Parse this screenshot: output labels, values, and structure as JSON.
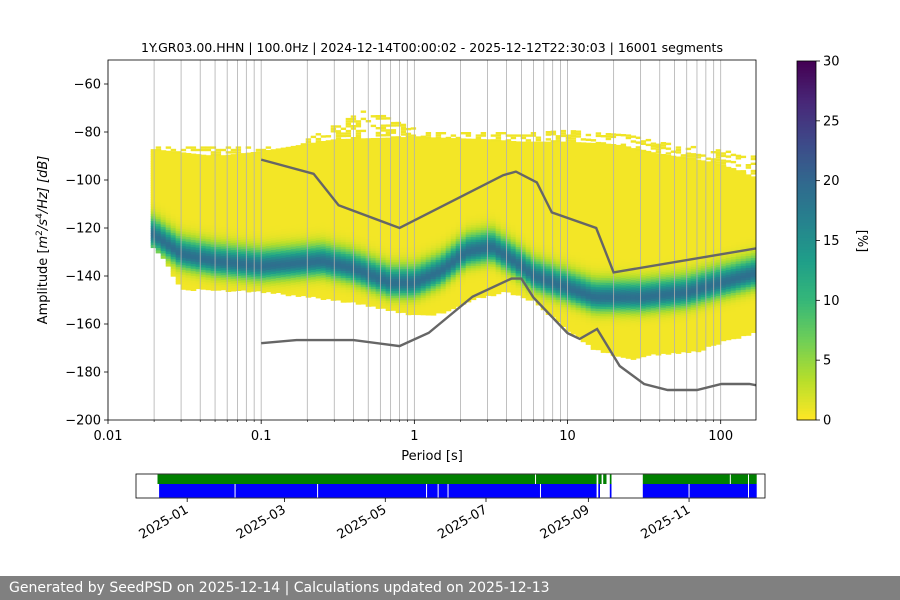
{
  "footer": {
    "text": "Generated by SeedPSD on 2025-12-14 | Calculations updated on 2025-12-13"
  },
  "chart_data": [
    {
      "type": "heatmap",
      "title": "1Y.GR03.00.HHN | 100.0Hz | 2024-12-14T00:00:02 - 2025-12-12T22:30:03 | 16001 segments",
      "xlabel": "Period [s]",
      "ylabel_parts": {
        "prefix": "Amplitude [",
        "m": "m",
        "exp2": "2",
        "s": "/s",
        "exp4": "4",
        "suffix": "/Hz] [dB]"
      },
      "x_scale": "log",
      "xlim": [
        0.01,
        170
      ],
      "ylim": [
        -200,
        -50
      ],
      "grid": true,
      "x_ticks": [
        {
          "value": 0.01,
          "label": "0.01"
        },
        {
          "value": 0.1,
          "label": "0.1"
        },
        {
          "value": 1,
          "label": "1"
        },
        {
          "value": 10,
          "label": "10"
        },
        {
          "value": 100,
          "label": "100"
        }
      ],
      "y_ticks": [
        {
          "value": -60,
          "label": "−60"
        },
        {
          "value": -80,
          "label": "−80"
        },
        {
          "value": -100,
          "label": "−100"
        },
        {
          "value": -120,
          "label": "−120"
        },
        {
          "value": -140,
          "label": "−140"
        },
        {
          "value": -160,
          "label": "−160"
        },
        {
          "value": -180,
          "label": "−180"
        },
        {
          "value": -200,
          "label": "−200"
        }
      ],
      "psd_density": {
        "x_start": 0.019,
        "mode": [
          [
            0.019,
            -122
          ],
          [
            0.03,
            -131
          ],
          [
            0.05,
            -134
          ],
          [
            0.1,
            -136
          ],
          [
            0.16,
            -135
          ],
          [
            0.25,
            -134
          ],
          [
            0.4,
            -137
          ],
          [
            0.7,
            -143
          ],
          [
            1.0,
            -143
          ],
          [
            1.5,
            -138
          ],
          [
            2.2,
            -130
          ],
          [
            3.2,
            -128
          ],
          [
            4.5,
            -134
          ],
          [
            6,
            -140
          ],
          [
            9,
            -144
          ],
          [
            15,
            -149
          ],
          [
            30,
            -149
          ],
          [
            60,
            -147
          ],
          [
            100,
            -143
          ],
          [
            170,
            -139
          ]
        ],
        "lower": [
          [
            0.019,
            -127
          ],
          [
            0.023,
            -132
          ],
          [
            0.03,
            -145
          ],
          [
            0.1,
            -146
          ],
          [
            0.2,
            -148
          ],
          [
            0.35,
            -150
          ],
          [
            0.7,
            -154
          ],
          [
            1.0,
            -156
          ],
          [
            1.5,
            -155
          ],
          [
            2.5,
            -149
          ],
          [
            4,
            -146
          ],
          [
            6,
            -150
          ],
          [
            10,
            -162
          ],
          [
            15,
            -170
          ],
          [
            25,
            -174
          ],
          [
            40,
            -172
          ],
          [
            70,
            -171
          ],
          [
            100,
            -167
          ],
          [
            170,
            -163
          ]
        ],
        "upper": [
          [
            0.019,
            -87
          ],
          [
            0.05,
            -90
          ],
          [
            0.1,
            -88
          ],
          [
            0.3,
            -83
          ],
          [
            1.0,
            -82
          ],
          [
            3,
            -83
          ],
          [
            5,
            -84
          ],
          [
            10,
            -84
          ],
          [
            20,
            -85
          ],
          [
            40,
            -89
          ],
          [
            80,
            -92
          ],
          [
            120,
            -95
          ],
          [
            170,
            -99
          ]
        ],
        "sparse_upper": [
          [
            0.16,
            -86
          ],
          [
            0.3,
            -77
          ],
          [
            0.5,
            -70
          ],
          [
            0.8,
            -76
          ],
          [
            1.2,
            -80
          ],
          [
            3,
            -80
          ],
          [
            6,
            -80
          ],
          [
            10,
            -79
          ],
          [
            15,
            -80
          ],
          [
            25,
            -81
          ],
          [
            40,
            -84
          ],
          [
            70,
            -86
          ],
          [
            120,
            -88
          ],
          [
            170,
            -90
          ]
        ]
      },
      "nhnm": {
        "x": [
          0.1,
          0.22,
          0.32,
          0.8,
          3.8,
          4.6,
          6.3,
          7.9,
          15.4,
          20,
          170
        ],
        "y": [
          -91.5,
          -97.4,
          -110.5,
          -120,
          -98,
          -96.5,
          -101,
          -113.5,
          -120,
          -138.5,
          -128.5
        ]
      },
      "nlnm": {
        "x": [
          0.1,
          0.17,
          0.4,
          0.8,
          1.24,
          2.4,
          4.3,
          5.0,
          6.0,
          10,
          12,
          15.6,
          21.9,
          31.6,
          45,
          70,
          101,
          154,
          170
        ],
        "y": [
          -168,
          -166.7,
          -166.7,
          -169.2,
          -163.7,
          -148.6,
          -141.1,
          -141.1,
          -149,
          -163.8,
          -166.2,
          -162.1,
          -177.5,
          -185,
          -187.5,
          -187.5,
          -185,
          -185,
          -185.5
        ]
      },
      "colorbar": {
        "label": "[%]",
        "range": [
          0,
          30
        ],
        "ticks": [
          {
            "value": 0,
            "label": "0"
          },
          {
            "value": 5,
            "label": "5"
          },
          {
            "value": 10,
            "label": "10"
          },
          {
            "value": 15,
            "label": "15"
          },
          {
            "value": 20,
            "label": "20"
          },
          {
            "value": 25,
            "label": "25"
          },
          {
            "value": 30,
            "label": "30"
          }
        ],
        "colors": [
          "#fde725",
          "#b5de2b",
          "#6ece58",
          "#35b779",
          "#1f9e89",
          "#26828e",
          "#31688e",
          "#3e4989",
          "#482878",
          "#440154"
        ]
      }
    },
    {
      "type": "timeline",
      "colors": {
        "top": "#008000",
        "bottom": "#0000ff"
      },
      "xlim": [
        "2024-12-01",
        "2025-12-17"
      ],
      "top_segments": [
        [
          "2024-12-14",
          "2025-09-06"
        ],
        [
          "2025-09-07",
          "2025-09-09"
        ],
        [
          "2025-09-10",
          "2025-09-12"
        ],
        [
          "2025-09-14",
          "2025-09-15"
        ],
        [
          "2025-10-04",
          "2025-12-12"
        ]
      ],
      "bottom_segments": [
        [
          "2024-12-15",
          "2025-09-06"
        ],
        [
          "2025-09-07",
          "2025-09-08"
        ],
        [
          "2025-09-14",
          "2025-09-15"
        ],
        [
          "2025-10-04",
          "2025-12-12"
        ]
      ],
      "top_gaps": [
        "2025-07-31",
        "2025-11-26",
        "2025-12-07"
      ],
      "bottom_gaps": [
        "2025-01-30",
        "2025-03-21",
        "2025-05-26",
        "2025-06-02",
        "2025-06-08",
        "2025-08-03",
        "2025-11-01",
        "2025-12-07"
      ],
      "x_ticks": [
        {
          "value": "2025-01-01",
          "label": "2025-01"
        },
        {
          "value": "2025-03-01",
          "label": "2025-03"
        },
        {
          "value": "2025-05-01",
          "label": "2025-05"
        },
        {
          "value": "2025-07-01",
          "label": "2025-07"
        },
        {
          "value": "2025-09-01",
          "label": "2025-09"
        },
        {
          "value": "2025-11-01",
          "label": "2025-11"
        }
      ]
    }
  ]
}
